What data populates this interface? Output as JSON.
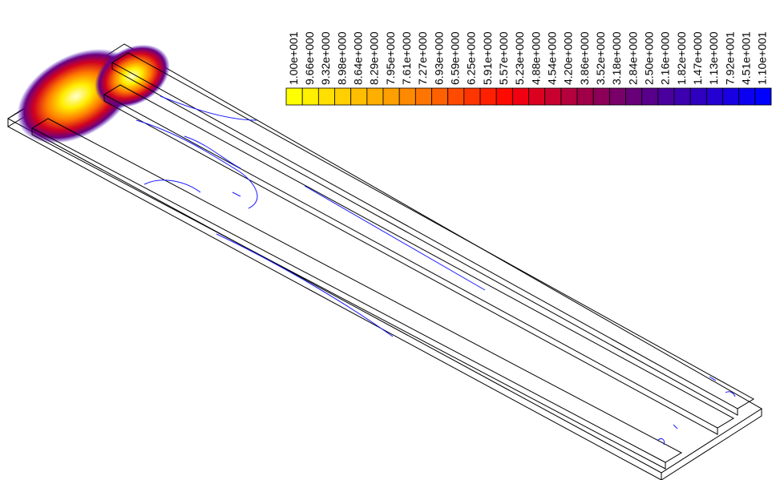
{
  "legend": {
    "labels": [
      "1.00e+001",
      "9.66e+000",
      "9.32e+000",
      "8.98e+000",
      "8.64e+000",
      "8.29e+000",
      "7.95e+000",
      "7.61e+000",
      "7.27e+000",
      "6.93e+000",
      "6.59e+000",
      "6.25e+000",
      "5.91e+000",
      "5.57e+000",
      "5.23e+000",
      "4.88e+000",
      "4.54e+000",
      "4.20e+000",
      "3.86e+000",
      "3.52e+000",
      "3.18e+000",
      "2.84e+000",
      "2.50e+000",
      "2.16e+000",
      "1.82e+000",
      "1.47e+000",
      "1.13e+000",
      "7.92e+001",
      "4.51e+001",
      "1.10e+001"
    ],
    "colors": [
      "#ffff00",
      "#ffef00",
      "#ffdf00",
      "#ffcf00",
      "#ffbf00",
      "#ffaf00",
      "#ff9f00",
      "#ff8a00",
      "#ff7500",
      "#ff6000",
      "#ff4a00",
      "#ff3500",
      "#ff2000",
      "#ff0a00",
      "#f00010",
      "#dc0020",
      "#c80030",
      "#b4003c",
      "#a00048",
      "#8c0058",
      "#780068",
      "#680078",
      "#58008a",
      "#4a009c",
      "#3c00ae",
      "#3000c0",
      "#2400d2",
      "#1800e2",
      "#0c00f0",
      "#0000ff"
    ]
  }
}
